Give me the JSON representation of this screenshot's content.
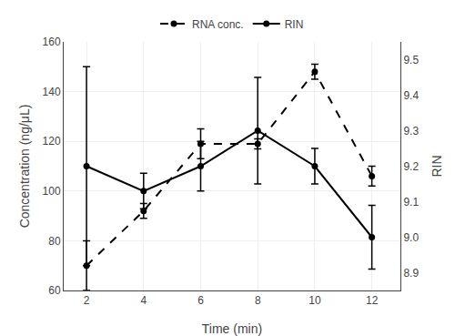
{
  "chart_data": {
    "type": "line",
    "x": [
      2,
      4,
      6,
      8,
      10,
      12
    ],
    "xlabel": "Time (min)",
    "ylabel": "Concentration (ng/μL)",
    "y2label": "RIN",
    "xlim": [
      1.2,
      13
    ],
    "xticks": [
      2,
      4,
      6,
      8,
      10,
      12
    ],
    "ylim": [
      60,
      160
    ],
    "yticks": [
      60,
      80,
      100,
      120,
      140,
      160
    ],
    "y2lim": [
      8.85,
      9.55
    ],
    "y2ticks": [
      8.9,
      {
        "value": 9,
        "label": "9.0"
      },
      9.1,
      9.2,
      9.3,
      9.4,
      9.5
    ],
    "grid": true,
    "legend": "top",
    "series": [
      {
        "name": "RNA conc.",
        "color": "#000000",
        "line_style": "dashed",
        "marker": "circle",
        "values": [
          70,
          92,
          119,
          119,
          148,
          106
        ],
        "errors": [
          10,
          3,
          6,
          2,
          3,
          4
        ]
      },
      {
        "name": "RIN",
        "axis": "y2",
        "color": "#000000",
        "line_style": "solid",
        "marker": "circle",
        "values": [
          9.2,
          9.13,
          9.2,
          9.3,
          9.2,
          9.0
        ],
        "errors": [
          0.28,
          0.05,
          0.07,
          0.15,
          0.05,
          0.09
        ]
      }
    ]
  }
}
